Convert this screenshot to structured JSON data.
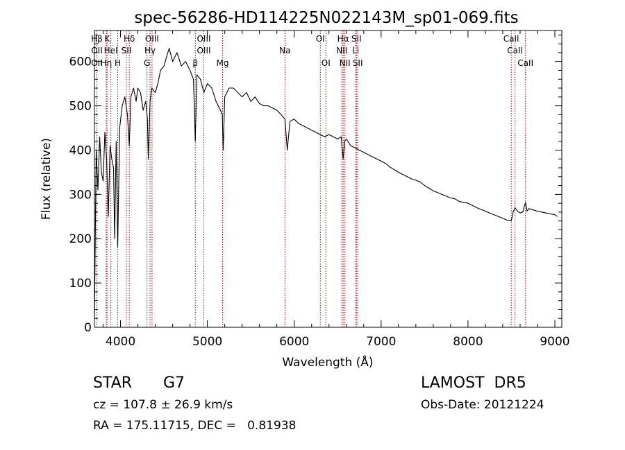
{
  "chart_data": {
    "type": "line",
    "title": "spec-56286-HD114225N022143M_sp01-069.fits",
    "xlabel": "Wavelength (Å)",
    "ylabel": "Flux (relative)",
    "xlim": [
      3700,
      9080
    ],
    "ylim": [
      0,
      670
    ],
    "xticks": [
      4000,
      5000,
      6000,
      7000,
      8000,
      9000
    ],
    "yticks": [
      0,
      100,
      200,
      300,
      400,
      500,
      600
    ],
    "grid": false,
    "series": [
      {
        "x": [
          3700,
          3720,
          3740,
          3760,
          3780,
          3800,
          3820,
          3840,
          3860,
          3880,
          3900,
          3920,
          3933,
          3950,
          3968,
          3990,
          4020,
          4050,
          4080,
          4101,
          4120,
          4150,
          4180,
          4200,
          4230,
          4260,
          4290,
          4310,
          4320,
          4340,
          4360,
          4400,
          4430,
          4460,
          4500,
          4530,
          4560,
          4600,
          4650,
          4700,
          4750,
          4800,
          4840,
          4861,
          4880,
          4920,
          4960,
          5000,
          5050,
          5100,
          5150,
          5172,
          5183,
          5200,
          5250,
          5300,
          5350,
          5400,
          5450,
          5500,
          5550,
          5600,
          5650,
          5700,
          5750,
          5800,
          5850,
          5893,
          5920,
          5950,
          6000,
          6050,
          6100,
          6150,
          6200,
          6250,
          6300,
          6350,
          6400,
          6450,
          6500,
          6540,
          6563,
          6580,
          6600,
          6650,
          6700,
          6750,
          6800,
          6850,
          6900,
          6950,
          7000,
          7050,
          7100,
          7150,
          7200,
          7250,
          7300,
          7350,
          7400,
          7450,
          7500,
          7550,
          7600,
          7650,
          7700,
          7750,
          7800,
          7850,
          7900,
          7950,
          8000,
          8050,
          8100,
          8150,
          8200,
          8250,
          8300,
          8350,
          8400,
          8450,
          8498,
          8520,
          8542,
          8570,
          8600,
          8630,
          8662,
          8680,
          8700,
          8750,
          8800,
          8850,
          8900,
          8950,
          9000,
          9030
        ],
        "y": [
          20,
          400,
          310,
          430,
          350,
          330,
          440,
          380,
          250,
          410,
          380,
          360,
          200,
          420,
          180,
          450,
          500,
          520,
          480,
          410,
          520,
          540,
          510,
          540,
          530,
          490,
          510,
          470,
          380,
          510,
          540,
          530,
          550,
          580,
          590,
          610,
          630,
          600,
          620,
          590,
          600,
          580,
          560,
          420,
          570,
          560,
          530,
          550,
          540,
          510,
          490,
          480,
          400,
          520,
          540,
          540,
          530,
          520,
          530,
          510,
          520,
          505,
          500,
          500,
          495,
          490,
          480,
          470,
          400,
          465,
          470,
          460,
          455,
          450,
          445,
          440,
          435,
          430,
          435,
          430,
          425,
          430,
          380,
          420,
          425,
          410,
          405,
          400,
          395,
          390,
          385,
          380,
          375,
          370,
          362,
          356,
          350,
          345,
          340,
          335,
          332,
          328,
          320,
          314,
          308,
          304,
          300,
          296,
          292,
          290,
          284,
          282,
          280,
          275,
          270,
          266,
          262,
          258,
          254,
          250,
          246,
          242,
          240,
          260,
          270,
          262,
          258,
          260,
          282,
          262,
          268,
          265,
          262,
          260,
          258,
          256,
          254,
          250
        ]
      }
    ],
    "line_markers": [
      {
        "label": "Hβ",
        "x": 3728,
        "row": 0
      },
      {
        "label": "K",
        "x": 3845,
        "row": 0
      },
      {
        "label": "Hδ",
        "x": 4101,
        "row": 0
      },
      {
        "label": "OIII",
        "x": 4363,
        "row": 0
      },
      {
        "label": "OIII",
        "x": 4959,
        "row": 0
      },
      {
        "label": "OI",
        "x": 6300,
        "row": 0
      },
      {
        "label": "Hα",
        "x": 6563,
        "row": 0
      },
      {
        "label": "SII",
        "x": 6716,
        "row": 0
      },
      {
        "label": "CaII",
        "x": 8498,
        "row": 0
      },
      {
        "label": "OII",
        "x": 3728,
        "row": 1
      },
      {
        "label": "HeI",
        "x": 3889,
        "row": 1
      },
      {
        "label": "SII",
        "x": 4068,
        "row": 1
      },
      {
        "label": "Hγ",
        "x": 4340,
        "row": 1
      },
      {
        "label": "OIII",
        "x": 4959,
        "row": 1
      },
      {
        "label": "Na",
        "x": 5893,
        "row": 1
      },
      {
        "label": "NII",
        "x": 6548,
        "row": 1
      },
      {
        "label": "Li",
        "x": 6708,
        "row": 1
      },
      {
        "label": "CaII",
        "x": 8542,
        "row": 1
      },
      {
        "label": "OII",
        "x": 3728,
        "row": 2
      },
      {
        "label": "Hη",
        "x": 3835,
        "row": 2
      },
      {
        "label": "H",
        "x": 3968,
        "row": 2
      },
      {
        "label": "G",
        "x": 4305,
        "row": 2
      },
      {
        "label": "β",
        "x": 4861,
        "row": 2
      },
      {
        "label": "Mg",
        "x": 5175,
        "row": 2
      },
      {
        "label": "OI",
        "x": 6364,
        "row": 2
      },
      {
        "label": "NII",
        "x": 6583,
        "row": 2
      },
      {
        "label": "SII",
        "x": 6731,
        "row": 2
      },
      {
        "label": "CaII",
        "x": 8662,
        "row": 2
      }
    ],
    "line_marker_color": "#b00000"
  },
  "info": {
    "object_type": "STAR",
    "subclass": "G7",
    "survey": "LAMOST  DR5",
    "cz": "cz = 107.8 ± 26.9 km/s",
    "obs_date": "Obs-Date: 20121224",
    "coords": "RA = 175.11715, DEC =   0.81938"
  }
}
